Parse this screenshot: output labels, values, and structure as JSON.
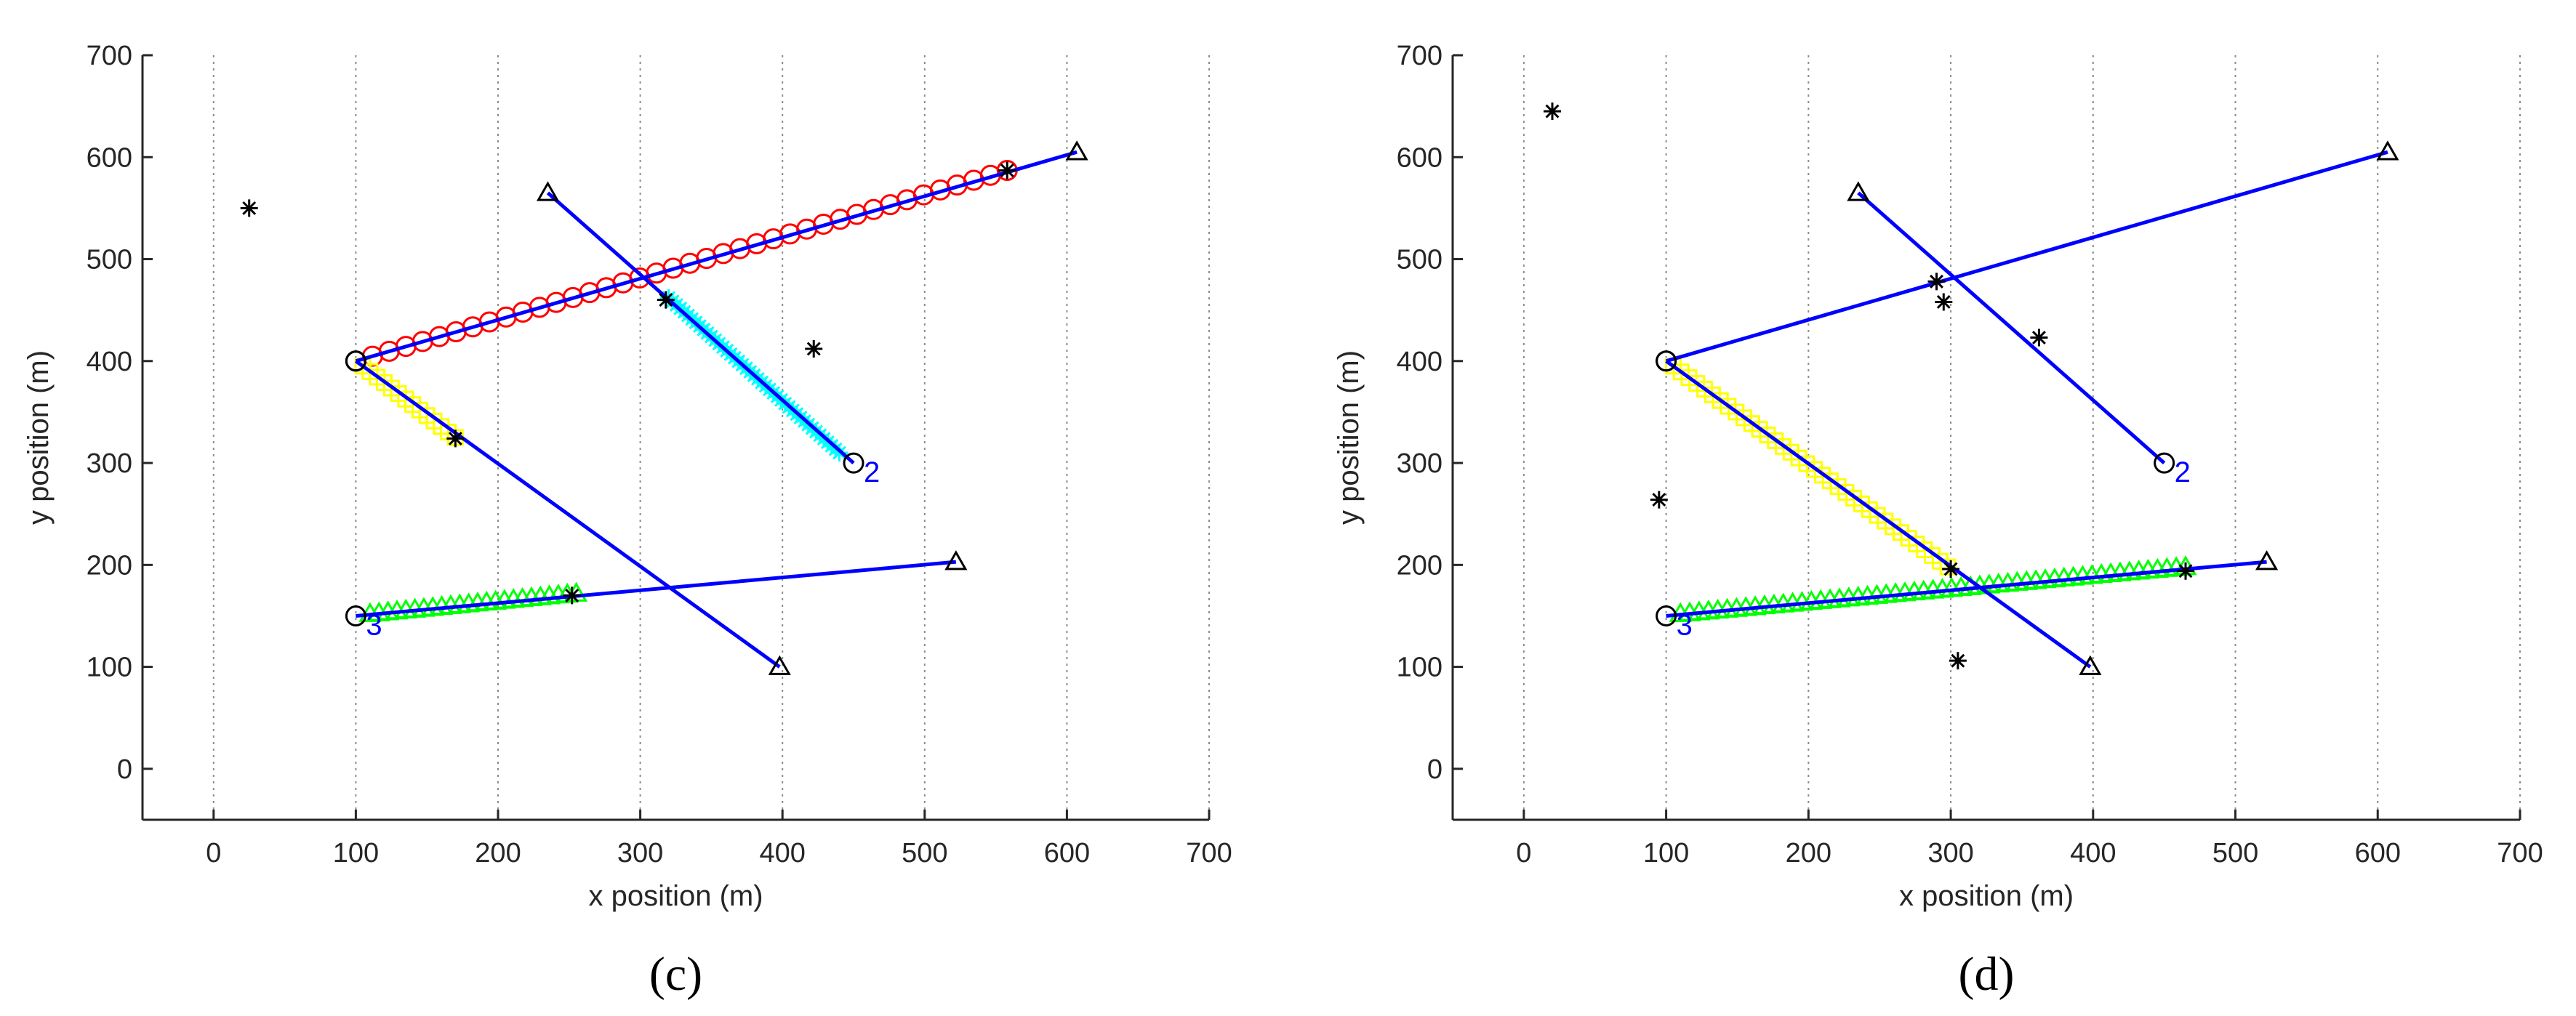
{
  "chart_data": [
    {
      "type": "scatter",
      "panel_label": "(c)",
      "xlabel": "x position (m)",
      "ylabel": "y position (m)",
      "xlim": [
        -50,
        700
      ],
      "ylim": [
        -50,
        700
      ],
      "xticks": [
        0,
        100,
        200,
        300,
        400,
        500,
        600,
        700
      ],
      "yticks": [
        0,
        100,
        200,
        300,
        400,
        500,
        600,
        700
      ],
      "grid": "vertical dotted lines at x ticks",
      "colors": {
        "true_track": "#0000ff",
        "track_1": "#ff0000",
        "track_2": "#00ffff",
        "track_3": "#00ff00",
        "track_4": "#ffff00",
        "measurement": "#000000",
        "track_id": "#0000ff"
      },
      "true_tracks": [
        {
          "start": [
            100,
            400
          ],
          "end": [
            607,
            605
          ],
          "start_marker": "circle",
          "end_marker": "triangle"
        },
        {
          "start": [
            450,
            300
          ],
          "end": [
            235,
            565
          ],
          "start_marker": "circle",
          "end_marker": "triangle",
          "id_label": "2"
        },
        {
          "start": [
            100,
            150
          ],
          "end": [
            522,
            203
          ],
          "start_marker": "circle",
          "end_marker": "triangle",
          "id_label": "3"
        },
        {
          "start": [
            100,
            400
          ],
          "end": [
            398,
            100
          ],
          "start_marker": "circle",
          "end_marker": "triangle"
        }
      ],
      "estimated_tracks": [
        {
          "marker": "circle",
          "color": "#ff0000",
          "from": [
            100,
            400
          ],
          "to": [
            558,
            587
          ],
          "count": 40
        },
        {
          "marker": "star",
          "color": "#00ffff",
          "from": [
            320,
            462
          ],
          "to": [
            440,
            310
          ],
          "count": 45
        },
        {
          "marker": "triangle",
          "color": "#00ff00",
          "from": [
            110,
            152
          ],
          "to": [
            255,
            172
          ],
          "count": 24
        },
        {
          "marker": "square",
          "color": "#ffff00",
          "from": [
            105,
            395
          ],
          "to": [
            170,
            325
          ],
          "count": 14
        }
      ],
      "measurements": [
        [
          25,
          550
        ],
        [
          558,
          587
        ],
        [
          318,
          460
        ],
        [
          422,
          412
        ],
        [
          170,
          324
        ],
        [
          252,
          170
        ]
      ]
    },
    {
      "type": "scatter",
      "panel_label": "(d)",
      "xlabel": "x position (m)",
      "ylabel": "y position (m)",
      "xlim": [
        -50,
        700
      ],
      "ylim": [
        -50,
        700
      ],
      "xticks": [
        0,
        100,
        200,
        300,
        400,
        500,
        600,
        700
      ],
      "yticks": [
        0,
        100,
        200,
        300,
        400,
        500,
        600,
        700
      ],
      "grid": "vertical dotted lines at x ticks",
      "colors": {
        "true_track": "#0000ff",
        "track_3": "#00ff00",
        "track_4": "#ffff00",
        "measurement": "#000000",
        "track_id": "#0000ff"
      },
      "true_tracks": [
        {
          "start": [
            100,
            400
          ],
          "end": [
            607,
            605
          ],
          "start_marker": "circle",
          "end_marker": "triangle"
        },
        {
          "start": [
            450,
            300
          ],
          "end": [
            235,
            565
          ],
          "start_marker": "circle",
          "end_marker": "triangle",
          "id_label": "2"
        },
        {
          "start": [
            100,
            150
          ],
          "end": [
            522,
            203
          ],
          "start_marker": "circle",
          "end_marker": "triangle",
          "id_label": "3"
        },
        {
          "start": [
            100,
            400
          ],
          "end": [
            398,
            100
          ],
          "start_marker": "circle",
          "end_marker": "triangle"
        }
      ],
      "estimated_tracks": [
        {
          "marker": "triangle",
          "color": "#00ff00",
          "from": [
            110,
            152
          ],
          "to": [
            465,
            198
          ],
          "count": 55
        },
        {
          "marker": "square",
          "color": "#ffff00",
          "from": [
            105,
            395
          ],
          "to": [
            298,
            198
          ],
          "count": 36
        }
      ],
      "measurements": [
        [
          20,
          645
        ],
        [
          290,
          478
        ],
        [
          295,
          458
        ],
        [
          362,
          423
        ],
        [
          95,
          264
        ],
        [
          300,
          196
        ],
        [
          465,
          194
        ],
        [
          305,
          106
        ]
      ]
    }
  ]
}
